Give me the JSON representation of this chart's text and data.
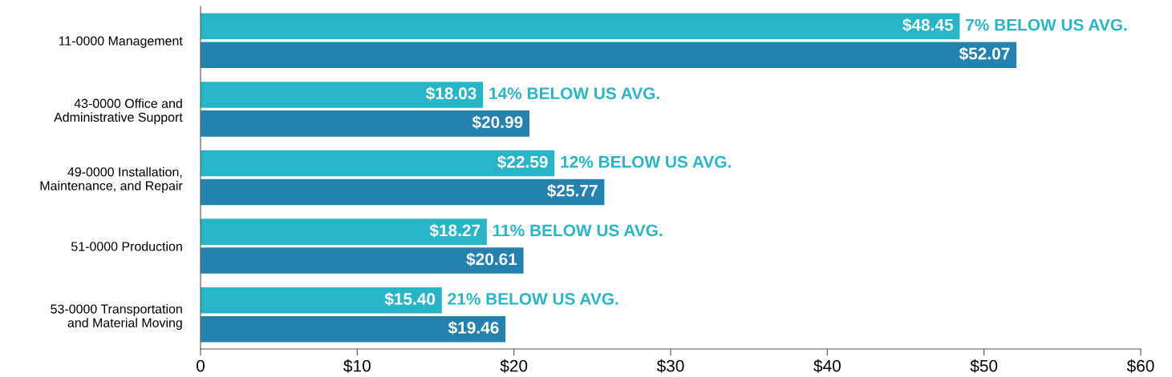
{
  "chart_data": {
    "type": "bar",
    "orientation": "horizontal",
    "categories": [
      "11-0000 Management",
      "43-0000 Office and\nAdministrative Support",
      "49-0000 Installation,\nMaintenance, and Repair",
      "51-0000 Production",
      "53-0000 Transportation\nand Material Moving"
    ],
    "series": [
      {
        "color": "#29b5c8",
        "values": [
          48.45,
          18.03,
          22.59,
          18.27,
          15.4
        ],
        "value_labels": [
          "$48.45",
          "$18.03",
          "$22.59",
          "$18.27",
          "$15.40"
        ]
      },
      {
        "color": "#2581ad",
        "values": [
          52.07,
          20.99,
          25.77,
          20.61,
          19.46
        ],
        "value_labels": [
          "$52.07",
          "$20.99",
          "$25.77",
          "$20.61",
          "$19.46"
        ]
      }
    ],
    "annotations": [
      {
        "text": "7% BELOW US AVG.",
        "x": 48.45,
        "y": "11-0000 Management"
      },
      {
        "text": "14% BELOW US AVG.",
        "x": 18.03,
        "y": "43-0000 Office and\nAdministrative Support"
      },
      {
        "text": "12% BELOW US AVG.",
        "x": 22.59,
        "y": "49-0000 Installation,\nMaintenance, and Repair"
      },
      {
        "text": "11% BELOW US AVG.",
        "x": 18.27,
        "y": "51-0000 Production"
      },
      {
        "text": "21% BELOW US AVG.",
        "x": 15.4,
        "y": "53-0000 Transportation\nand Material Moving"
      }
    ],
    "xlim": [
      0,
      60
    ],
    "xticks": [
      0,
      {
        "value": 10,
        "label": "$10"
      },
      {
        "value": 20,
        "label": "$20"
      },
      {
        "value": 30,
        "label": "$30"
      },
      {
        "value": 40,
        "label": "$40"
      },
      {
        "value": 50,
        "label": "$50"
      },
      {
        "value": 60,
        "label": "$60"
      }
    ],
    "grid": false,
    "legend": false
  }
}
